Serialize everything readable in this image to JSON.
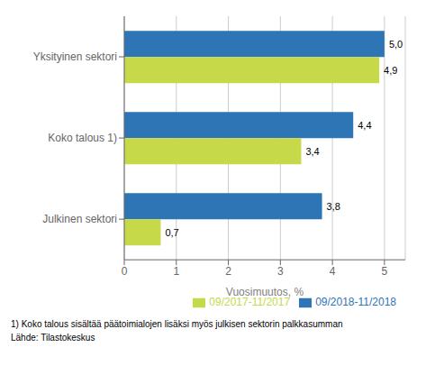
{
  "chart_data": {
    "type": "bar",
    "orientation": "horizontal",
    "categories": [
      "Julkinen sektori",
      "Koko talous 1)",
      "Yksityinen sektori"
    ],
    "series": [
      {
        "name": "09/2018-11/2018",
        "color": "#2E75B6",
        "values": [
          3.8,
          4.4,
          5.0
        ],
        "value_labels": [
          "3,8",
          "4,4",
          "5,0"
        ]
      },
      {
        "name": "09/2017-11/2017",
        "color": "#C5D949",
        "values": [
          0.7,
          3.4,
          4.9
        ],
        "value_labels": [
          "0,7",
          "3,4",
          "4,9"
        ]
      }
    ],
    "xlabel": "Vuosimuutos, %",
    "xlim": [
      0,
      5.4
    ],
    "xticks": [
      0,
      1,
      2,
      3,
      4,
      5
    ],
    "grid": true,
    "legend": "lower right",
    "data_labels": true,
    "annotations": [
      "1) Koko talous sisältää päätoimialojen lisäksi myös julkisen sektorin palkkasumman",
      "Lähde: Tilastokeskus"
    ]
  }
}
